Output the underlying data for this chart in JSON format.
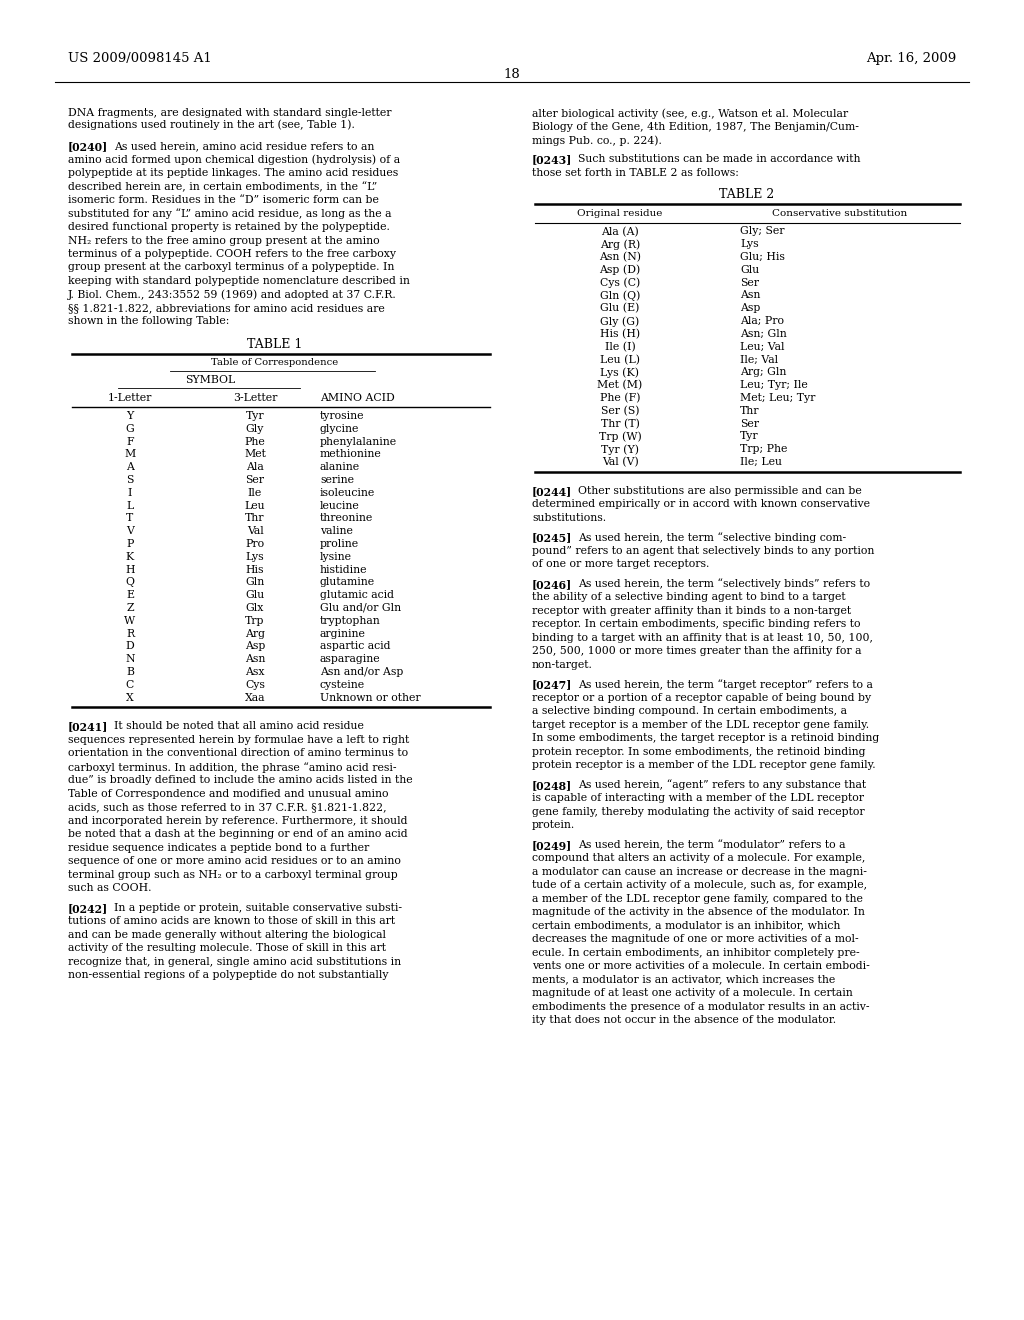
{
  "bg_color": "#ffffff",
  "header_left": "US 2009/0098145 A1",
  "header_right": "Apr. 16, 2009",
  "page_number": "18",
  "table1_rows": [
    [
      "Y",
      "Tyr",
      "tyrosine"
    ],
    [
      "G",
      "Gly",
      "glycine"
    ],
    [
      "F",
      "Phe",
      "phenylalanine"
    ],
    [
      "M",
      "Met",
      "methionine"
    ],
    [
      "A",
      "Ala",
      "alanine"
    ],
    [
      "S",
      "Ser",
      "serine"
    ],
    [
      "I",
      "Ile",
      "isoleucine"
    ],
    [
      "L",
      "Leu",
      "leucine"
    ],
    [
      "T",
      "Thr",
      "threonine"
    ],
    [
      "V",
      "Val",
      "valine"
    ],
    [
      "P",
      "Pro",
      "proline"
    ],
    [
      "K",
      "Lys",
      "lysine"
    ],
    [
      "H",
      "His",
      "histidine"
    ],
    [
      "Q",
      "Gln",
      "glutamine"
    ],
    [
      "E",
      "Glu",
      "glutamic acid"
    ],
    [
      "Z",
      "Glx",
      "Glu and/or Gln"
    ],
    [
      "W",
      "Trp",
      "tryptophan"
    ],
    [
      "R",
      "Arg",
      "arginine"
    ],
    [
      "D",
      "Asp",
      "aspartic acid"
    ],
    [
      "N",
      "Asn",
      "asparagine"
    ],
    [
      "B",
      "Asx",
      "Asn and/or Asp"
    ],
    [
      "C",
      "Cys",
      "cysteine"
    ],
    [
      "X",
      "Xaa",
      "Unknown or other"
    ]
  ],
  "table2_rows": [
    [
      "Ala (A)",
      "Gly; Ser"
    ],
    [
      "Arg (R)",
      "Lys"
    ],
    [
      "Asn (N)",
      "Glu; His"
    ],
    [
      "Asp (D)",
      "Glu"
    ],
    [
      "Cys (C)",
      "Ser"
    ],
    [
      "Gln (Q)",
      "Asn"
    ],
    [
      "Glu (E)",
      "Asp"
    ],
    [
      "Gly (G)",
      "Ala; Pro"
    ],
    [
      "His (H)",
      "Asn; Gln"
    ],
    [
      "Ile (I)",
      "Leu; Val"
    ],
    [
      "Leu (L)",
      "Ile; Val"
    ],
    [
      "Lys (K)",
      "Arg; Gln"
    ],
    [
      "Met (M)",
      "Leu; Tyr; Ile"
    ],
    [
      "Phe (F)",
      "Met; Leu; Tyr"
    ],
    [
      "Ser (S)",
      "Thr"
    ],
    [
      "Thr (T)",
      "Ser"
    ],
    [
      "Trp (W)",
      "Tyr"
    ],
    [
      "Tyr (Y)",
      "Trp; Phe"
    ],
    [
      "Val (V)",
      "Ile; Leu"
    ]
  ]
}
